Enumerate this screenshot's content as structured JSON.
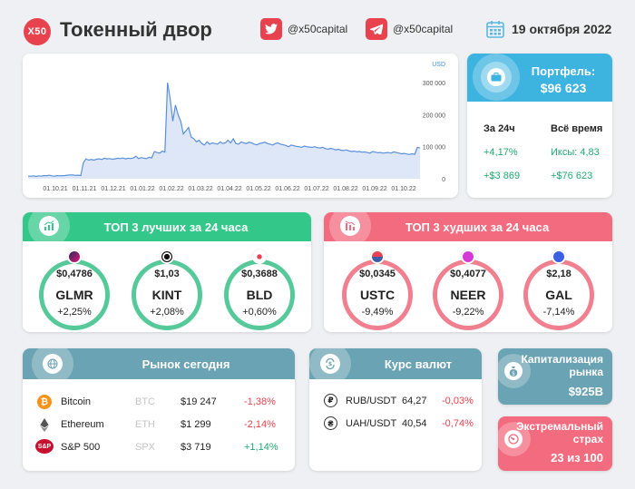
{
  "header": {
    "logo_text": "X50",
    "title": "Токенный двор",
    "twitter_handle": "@x50capital",
    "telegram_handle": "@x50capital",
    "date": "19 октября 2022"
  },
  "chart_data": {
    "type": "area",
    "currency_label": "USD",
    "x_ticks": [
      "01.10.21",
      "01.11.21",
      "01.12.21",
      "01.01.22",
      "01.02.22",
      "01.03.22",
      "01.04.22",
      "01.05.22",
      "01.06.22",
      "01.07.22",
      "01.08.22",
      "01.09.22",
      "01.10.22"
    ],
    "y_ticks": [
      "300 000",
      "200 000",
      "100 000",
      "0"
    ],
    "ylim": [
      0,
      340000
    ],
    "values": [
      8000,
      8000,
      9000,
      7000,
      9000,
      8000,
      10000,
      9000,
      11000,
      9000,
      8000,
      10000,
      9000,
      9500,
      10000,
      11000,
      12000,
      11500,
      10500,
      11000,
      10000,
      50000,
      62000,
      58000,
      60000,
      58000,
      61000,
      62000,
      60000,
      64000,
      62000,
      63000,
      61000,
      62000,
      64000,
      63000,
      65000,
      62000,
      64000,
      63000,
      65000,
      70000,
      63000,
      66000,
      64000,
      63000,
      67000,
      65000,
      85000,
      82000,
      80000,
      86000,
      83000,
      300000,
      250000,
      180000,
      230000,
      200000,
      180000,
      140000,
      150000,
      160000,
      130000,
      125000,
      115000,
      120000,
      110000,
      105000,
      115000,
      108000,
      112000,
      110000,
      108000,
      115000,
      110000,
      112000,
      120000,
      112000,
      125000,
      110000,
      108000,
      115000,
      112000,
      110000,
      114000,
      112000,
      108000,
      106000,
      110000,
      112000,
      114000,
      110000,
      108000,
      105000,
      110000,
      112000,
      108000,
      106000,
      104000,
      100000,
      105000,
      103000,
      101000,
      100000,
      98000,
      102000,
      100000,
      99000,
      98000,
      100000,
      97000,
      96000,
      98000,
      94000,
      92000,
      95000,
      93000,
      90000,
      92000,
      89000,
      88000,
      90000,
      87000,
      85000,
      86000,
      84000,
      85000,
      83000,
      84000,
      82000,
      80000,
      85000,
      83000,
      81000,
      82000,
      80000,
      81000,
      82000,
      80000,
      84000,
      82000,
      80000,
      78000,
      79000,
      77000,
      76000,
      78000,
      76000,
      98000,
      96000
    ]
  },
  "portfolio": {
    "title": "Портфель:",
    "value": "$96 623",
    "col1_label": "За 24ч",
    "col2_label": "Всё время",
    "d24_pct": "+4,17%",
    "d24_usd": "+$3 869",
    "all_multiplier": "Иксы: 4,83",
    "all_usd": "+$76 623"
  },
  "top_best": {
    "title": "ТОП 3 лучших за 24 часа",
    "items": [
      {
        "price": "$0,4786",
        "symbol": "GLMR",
        "change": "+2,25%"
      },
      {
        "price": "$1,03",
        "symbol": "KINT",
        "change": "+2,08%"
      },
      {
        "price": "$0,3688",
        "symbol": "BLD",
        "change": "+0,60%"
      }
    ]
  },
  "top_worst": {
    "title": "ТОП 3 худших за 24 часа",
    "items": [
      {
        "price": "$0,0345",
        "symbol": "USTC",
        "change": "-9,49%"
      },
      {
        "price": "$0,4077",
        "symbol": "NEER",
        "change": "-9,22%"
      },
      {
        "price": "$2,18",
        "symbol": "GAL",
        "change": "-7,14%"
      }
    ]
  },
  "market": {
    "title": "Рынок сегодня",
    "rows": [
      {
        "name": "Bitcoin",
        "ticker": "BTC",
        "price": "$19 247",
        "change": "-1,38%"
      },
      {
        "name": "Ethereum",
        "ticker": "ETH",
        "price": "$1 299",
        "change": "-2,14%"
      },
      {
        "name": "S&P 500",
        "ticker": "SPX",
        "price": "$3 719",
        "change": "+1,14%"
      }
    ],
    "spx_icon_text": "S&P"
  },
  "fx": {
    "title": "Курс валют",
    "rows": [
      {
        "pair": "RUB/USDT",
        "rate": "64,27",
        "change": "-0,03%"
      },
      {
        "pair": "UAH/USDT",
        "rate": "40,54",
        "change": "-0,74%"
      }
    ]
  },
  "cap": {
    "title": "Капитализация рынка",
    "value": "$925B"
  },
  "fear": {
    "title": "Экстремальный страх",
    "value": "23 из 100"
  },
  "colors": {
    "accent_red": "#e8424e",
    "green_head": "#34c78a",
    "red_head": "#f36b7f",
    "teal_head": "#6aa3b3",
    "blue_head": "#3db3e0",
    "chart_line": "#5b8fd9",
    "chart_fill": "#dde7f7"
  }
}
